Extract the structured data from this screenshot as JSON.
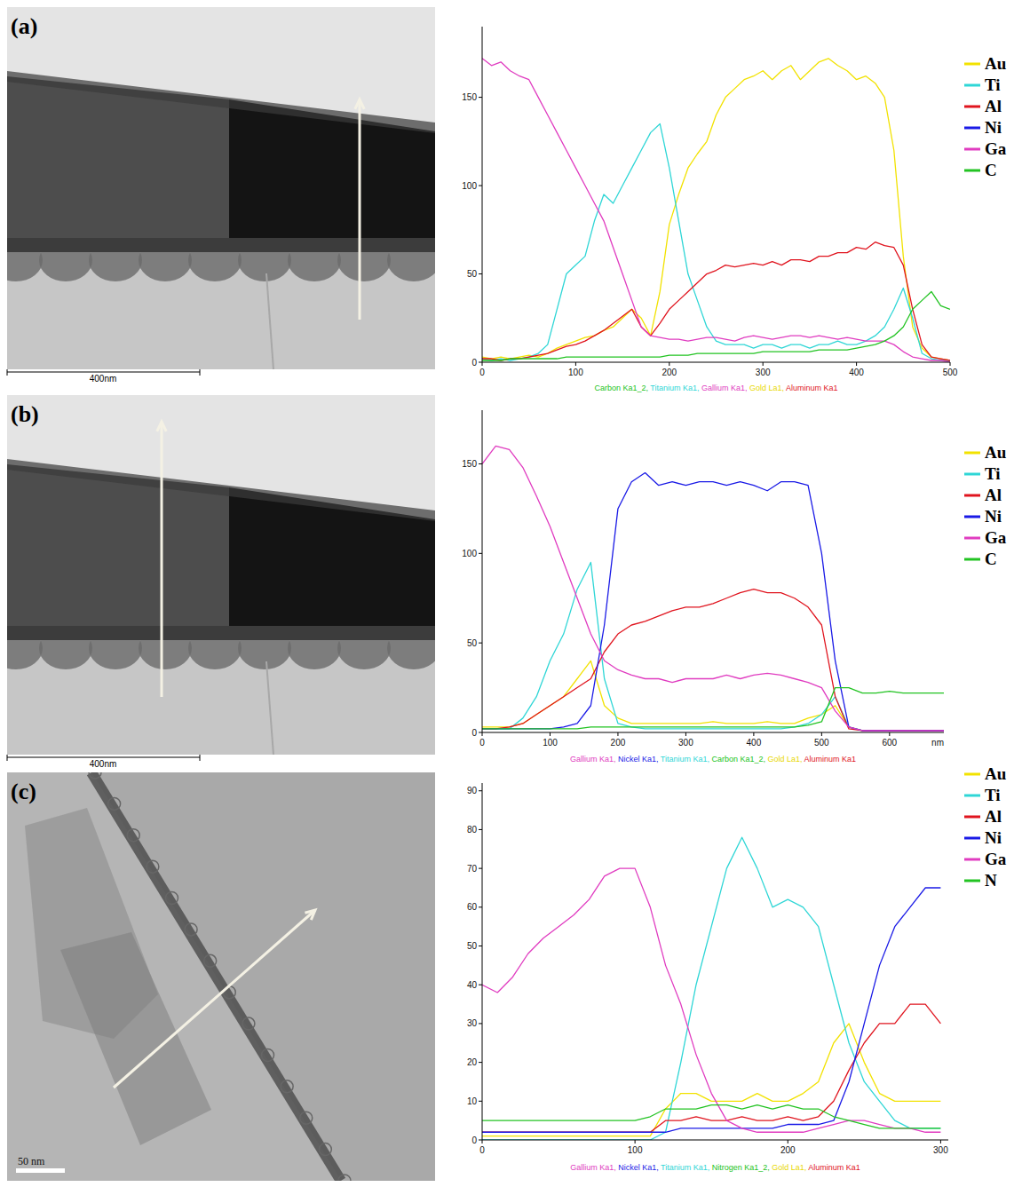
{
  "chart_data": [
    {
      "type": "line",
      "title": "(a)",
      "scale_bar": "400nm",
      "grid": false,
      "legend": "right",
      "annotations": [
        {
          "text": "Carbon Ka1_2,",
          "color": "#22c322"
        },
        {
          "text": "Titanium Ka1,",
          "color": "#2fd6d6"
        },
        {
          "text": "Gallium Ka1,",
          "color": "#e03cc0"
        },
        {
          "text": "Gold La1,",
          "color": "#e8d800"
        },
        {
          "text": "Aluminum Ka1",
          "color": "#e0141e"
        }
      ],
      "xlim": [
        0,
        500
      ],
      "xticks": [
        0,
        100,
        200,
        300,
        400,
        500
      ],
      "ylim": [
        0,
        190
      ],
      "yticks": [
        0,
        50,
        100,
        150
      ],
      "x": [
        0,
        10,
        20,
        30,
        40,
        50,
        60,
        70,
        80,
        90,
        100,
        110,
        120,
        130,
        140,
        150,
        160,
        170,
        180,
        190,
        200,
        210,
        220,
        230,
        240,
        250,
        260,
        270,
        280,
        290,
        300,
        310,
        320,
        330,
        340,
        350,
        360,
        370,
        380,
        390,
        400,
        410,
        420,
        430,
        440,
        450,
        460,
        470,
        480,
        490,
        500
      ],
      "series": [
        {
          "name": "Au",
          "color": "#f2e200",
          "values": [
            3,
            2,
            3,
            2,
            3,
            4,
            3,
            5,
            8,
            10,
            12,
            14,
            15,
            18,
            20,
            25,
            30,
            25,
            15,
            40,
            78,
            95,
            110,
            118,
            125,
            140,
            150,
            155,
            160,
            162,
            165,
            160,
            165,
            168,
            160,
            165,
            170,
            172,
            168,
            165,
            160,
            162,
            158,
            150,
            120,
            60,
            20,
            8,
            3,
            2,
            1
          ]
        },
        {
          "name": "Ti",
          "color": "#2fd6d6",
          "values": [
            2,
            1,
            2,
            1,
            2,
            3,
            5,
            10,
            30,
            50,
            55,
            60,
            80,
            95,
            90,
            100,
            110,
            120,
            130,
            135,
            110,
            80,
            50,
            35,
            20,
            12,
            10,
            10,
            10,
            8,
            10,
            10,
            8,
            10,
            10,
            8,
            10,
            10,
            12,
            10,
            10,
            12,
            15,
            20,
            30,
            42,
            25,
            5,
            2,
            1,
            1
          ]
        },
        {
          "name": "Al",
          "color": "#e0141e",
          "values": [
            2,
            2,
            1,
            2,
            2,
            3,
            4,
            5,
            7,
            9,
            10,
            12,
            15,
            18,
            22,
            26,
            30,
            20,
            15,
            22,
            30,
            35,
            40,
            45,
            50,
            52,
            55,
            54,
            55,
            56,
            55,
            57,
            55,
            58,
            58,
            57,
            60,
            60,
            62,
            62,
            65,
            64,
            68,
            66,
            65,
            55,
            30,
            10,
            3,
            2,
            1
          ]
        },
        {
          "name": "Ni",
          "color": "#1a1ae6",
          "values": [
            null,
            null,
            null,
            null,
            null,
            null,
            null,
            null,
            null,
            null,
            null,
            null,
            null,
            null,
            null,
            null,
            null,
            null,
            null,
            null,
            null,
            null,
            null,
            null,
            null,
            null,
            null,
            null,
            null,
            null,
            null,
            null,
            null,
            null,
            null,
            null,
            null,
            null,
            null,
            null,
            null,
            null,
            null,
            null,
            null,
            null,
            null,
            null,
            null,
            null,
            null
          ]
        },
        {
          "name": "Ga",
          "color": "#e03cc0",
          "values": [
            172,
            168,
            170,
            165,
            162,
            160,
            150,
            140,
            130,
            120,
            110,
            100,
            90,
            80,
            65,
            50,
            35,
            20,
            15,
            14,
            13,
            13,
            12,
            13,
            14,
            14,
            13,
            12,
            14,
            15,
            14,
            13,
            14,
            15,
            15,
            14,
            15,
            14,
            13,
            14,
            13,
            12,
            12,
            12,
            10,
            6,
            3,
            2,
            1,
            1,
            0
          ]
        },
        {
          "name": "C",
          "color": "#22c322",
          "values": [
            1,
            1,
            1,
            2,
            2,
            2,
            2,
            2,
            2,
            3,
            3,
            3,
            3,
            3,
            3,
            3,
            3,
            3,
            3,
            3,
            4,
            4,
            4,
            5,
            5,
            5,
            5,
            5,
            5,
            5,
            6,
            6,
            6,
            6,
            6,
            6,
            7,
            7,
            7,
            7,
            8,
            9,
            10,
            12,
            15,
            20,
            30,
            35,
            40,
            32,
            30
          ]
        }
      ]
    },
    {
      "type": "line",
      "title": "(b)",
      "scale_bar": "400nm",
      "x_label": "nm",
      "grid": false,
      "legend": "right",
      "annotations": [
        {
          "text": "Gallium Ka1,",
          "color": "#e03cc0"
        },
        {
          "text": "Nickel Ka1,",
          "color": "#1a1ae6"
        },
        {
          "text": "Titanium Ka1,",
          "color": "#2fd6d6"
        },
        {
          "text": "Carbon Ka1_2,",
          "color": "#22c322"
        },
        {
          "text": "Gold La1,",
          "color": "#e8d800"
        },
        {
          "text": "Aluminum Ka1",
          "color": "#e0141e"
        }
      ],
      "xlim": [
        0,
        680
      ],
      "xticks": [
        0,
        100,
        200,
        300,
        400,
        500,
        600
      ],
      "ylim": [
        0,
        180
      ],
      "yticks": [
        0,
        50,
        100,
        150
      ],
      "x": [
        0,
        20,
        40,
        60,
        80,
        100,
        120,
        140,
        160,
        180,
        200,
        220,
        240,
        260,
        280,
        300,
        320,
        340,
        360,
        380,
        400,
        420,
        440,
        460,
        480,
        500,
        520,
        540,
        560,
        580,
        600,
        620,
        640,
        660,
        680
      ],
      "series": [
        {
          "name": "Au",
          "color": "#f2e200",
          "values": [
            3,
            3,
            3,
            5,
            10,
            15,
            20,
            30,
            40,
            15,
            8,
            5,
            5,
            5,
            5,
            5,
            5,
            6,
            5,
            5,
            5,
            6,
            5,
            5,
            8,
            10,
            15,
            3,
            1,
            1,
            1,
            1,
            1,
            1,
            1
          ]
        },
        {
          "name": "Ti",
          "color": "#2fd6d6",
          "values": [
            2,
            2,
            2,
            8,
            20,
            40,
            55,
            80,
            95,
            30,
            5,
            3,
            2,
            2,
            2,
            2,
            2,
            2,
            2,
            2,
            2,
            2,
            2,
            3,
            5,
            10,
            20,
            3,
            1,
            1,
            1,
            1,
            1,
            1,
            1
          ]
        },
        {
          "name": "Al",
          "color": "#e0141e",
          "values": [
            2,
            2,
            3,
            5,
            10,
            15,
            20,
            25,
            30,
            45,
            55,
            60,
            62,
            65,
            68,
            70,
            70,
            72,
            75,
            78,
            80,
            78,
            78,
            75,
            70,
            60,
            20,
            2,
            1,
            1,
            1,
            1,
            1,
            1,
            1
          ]
        },
        {
          "name": "Ni",
          "color": "#1a1ae6",
          "values": [
            2,
            2,
            2,
            2,
            2,
            2,
            3,
            5,
            15,
            60,
            125,
            140,
            145,
            138,
            140,
            138,
            140,
            140,
            138,
            140,
            138,
            135,
            140,
            140,
            138,
            100,
            40,
            3,
            1,
            1,
            1,
            1,
            1,
            1,
            1
          ]
        },
        {
          "name": "Ga",
          "color": "#e03cc0",
          "values": [
            150,
            160,
            158,
            148,
            132,
            115,
            95,
            75,
            55,
            40,
            35,
            32,
            30,
            30,
            28,
            30,
            30,
            30,
            32,
            30,
            32,
            33,
            32,
            30,
            28,
            25,
            12,
            3,
            1,
            1,
            1,
            1,
            1,
            1,
            1
          ]
        },
        {
          "name": "C",
          "color": "#22c322",
          "values": [
            2,
            2,
            2,
            2,
            2,
            2,
            2,
            2,
            3,
            3,
            3,
            3,
            3,
            3,
            3,
            3,
            3,
            3,
            3,
            3,
            3,
            3,
            3,
            3,
            4,
            6,
            25,
            25,
            22,
            22,
            23,
            22,
            22,
            22,
            22
          ]
        }
      ]
    },
    {
      "type": "line",
      "title": "(c)",
      "scale_bar": "50 nm",
      "grid": false,
      "legend": "right",
      "annotations": [
        {
          "text": "Gallium Ka1,",
          "color": "#e03cc0"
        },
        {
          "text": "Nickel Ka1,",
          "color": "#1a1ae6"
        },
        {
          "text": "Titanium Ka1,",
          "color": "#2fd6d6"
        },
        {
          "text": "Nitrogen Ka1_2,",
          "color": "#22c322"
        },
        {
          "text": "Gold La1,",
          "color": "#e8d800"
        },
        {
          "text": "Aluminum Ka1",
          "color": "#e0141e"
        }
      ],
      "xlim": [
        0,
        305
      ],
      "xticks": [
        0,
        100,
        200,
        300
      ],
      "ylim": [
        0,
        92
      ],
      "yticks": [
        0,
        10,
        20,
        30,
        40,
        50,
        60,
        70,
        80,
        90
      ],
      "x": [
        0,
        10,
        20,
        30,
        40,
        50,
        60,
        70,
        80,
        90,
        100,
        110,
        120,
        130,
        140,
        150,
        160,
        170,
        180,
        190,
        200,
        210,
        220,
        230,
        240,
        250,
        260,
        270,
        280,
        290,
        300
      ],
      "series": [
        {
          "name": "Au",
          "color": "#f2e200",
          "values": [
            1,
            1,
            1,
            1,
            1,
            1,
            1,
            1,
            1,
            1,
            1,
            1,
            8,
            12,
            12,
            10,
            10,
            10,
            12,
            10,
            10,
            12,
            15,
            25,
            30,
            20,
            12,
            10,
            10,
            10,
            10
          ]
        },
        {
          "name": "Ti",
          "color": "#2fd6d6",
          "values": [
            0,
            0,
            0,
            0,
            0,
            0,
            0,
            0,
            0,
            0,
            0,
            0,
            2,
            20,
            40,
            55,
            70,
            78,
            70,
            60,
            62,
            60,
            55,
            40,
            25,
            15,
            10,
            5,
            3,
            3,
            3
          ]
        },
        {
          "name": "Al",
          "color": "#e0141e",
          "values": [
            2,
            2,
            2,
            2,
            2,
            2,
            2,
            2,
            2,
            2,
            2,
            2,
            5,
            5,
            6,
            5,
            5,
            6,
            5,
            5,
            6,
            5,
            6,
            10,
            18,
            25,
            30,
            30,
            35,
            35,
            30
          ]
        },
        {
          "name": "Ni",
          "color": "#1a1ae6",
          "values": [
            2,
            2,
            2,
            2,
            2,
            2,
            2,
            2,
            2,
            2,
            2,
            2,
            2,
            3,
            3,
            3,
            3,
            3,
            3,
            3,
            4,
            4,
            4,
            5,
            15,
            30,
            45,
            55,
            60,
            65,
            65
          ]
        },
        {
          "name": "Ga",
          "color": "#e03cc0",
          "values": [
            40,
            38,
            42,
            48,
            52,
            55,
            58,
            62,
            68,
            70,
            70,
            60,
            45,
            35,
            22,
            12,
            5,
            3,
            2,
            2,
            2,
            2,
            3,
            4,
            5,
            5,
            4,
            3,
            3,
            2,
            2
          ]
        },
        {
          "name": "N",
          "color": "#22c322",
          "values": [
            5,
            5,
            5,
            5,
            5,
            5,
            5,
            5,
            5,
            5,
            5,
            6,
            8,
            8,
            8,
            9,
            9,
            8,
            9,
            8,
            9,
            8,
            8,
            6,
            5,
            4,
            3,
            3,
            3,
            3,
            3
          ]
        }
      ]
    }
  ]
}
